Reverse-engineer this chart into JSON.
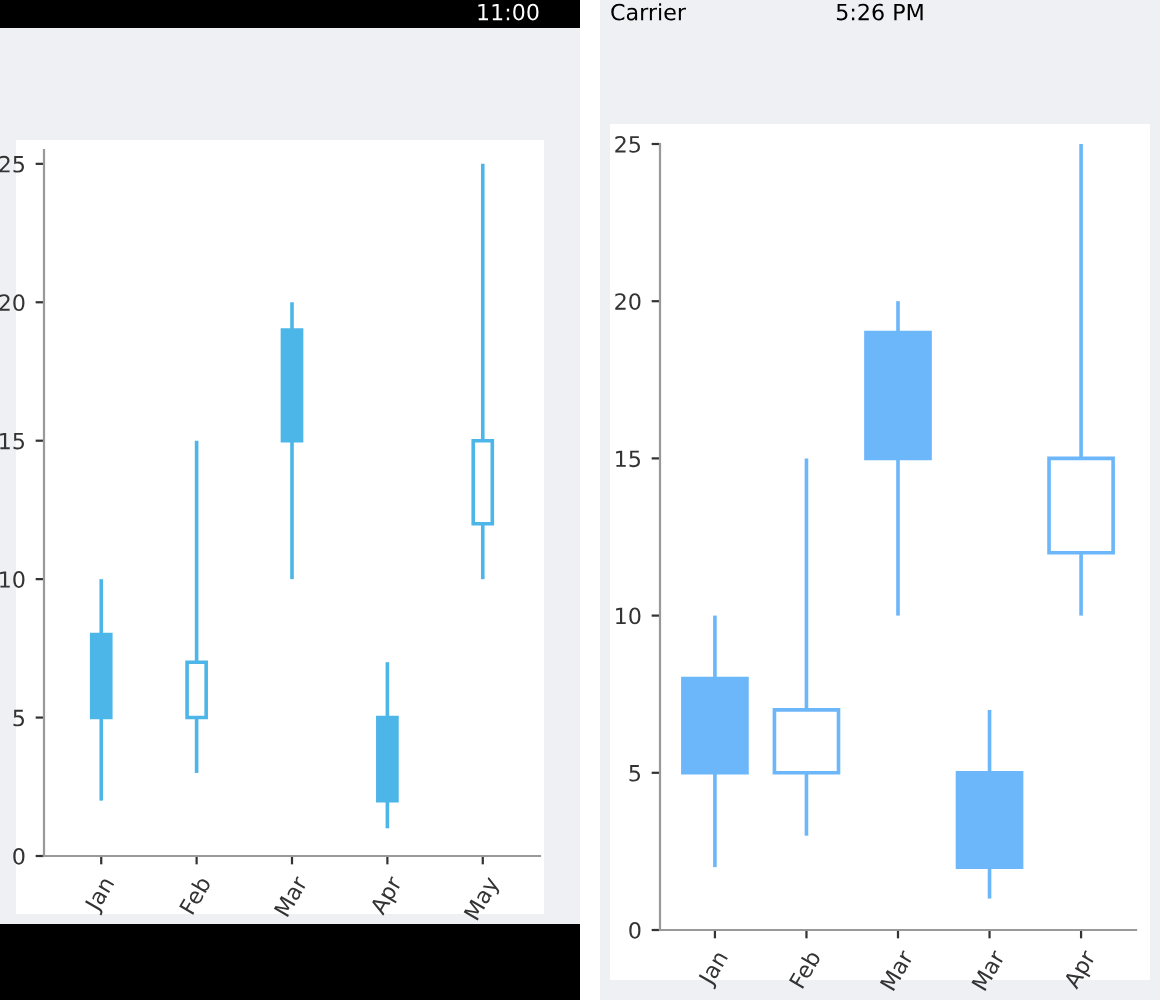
{
  "chart_data": [
    {
      "type": "candlestick",
      "categories": [
        "Jan",
        "Feb",
        "Mar",
        "Apr",
        "May"
      ],
      "ohlc": [
        [
          8,
          10,
          2,
          5
        ],
        [
          5,
          15,
          3,
          7
        ],
        [
          19,
          20,
          10,
          15
        ],
        [
          5,
          7,
          1,
          2
        ],
        [
          12,
          25,
          10,
          15
        ]
      ],
      "color": "#4db6e8",
      "ylim": [
        0,
        25.5
      ],
      "yticks": [
        0,
        5,
        10,
        15,
        20,
        25
      ],
      "grid": false,
      "annotations": [
        "11:00"
      ]
    },
    {
      "type": "candlestick",
      "categories": [
        "Jan",
        "Feb",
        "Mar",
        "Mar",
        "Apr"
      ],
      "ohlc": [
        [
          8,
          10,
          2,
          5
        ],
        [
          5,
          15,
          3,
          7
        ],
        [
          19,
          20,
          10,
          15
        ],
        [
          5,
          7,
          1,
          2
        ],
        [
          12,
          25,
          10,
          15
        ]
      ],
      "color": "#6cb6fa",
      "ylim": [
        0,
        25
      ],
      "yticks": [
        0,
        5,
        10,
        15,
        20,
        25
      ],
      "grid": false,
      "annotations": [
        "Carrier",
        "5:26 PM"
      ]
    }
  ]
}
